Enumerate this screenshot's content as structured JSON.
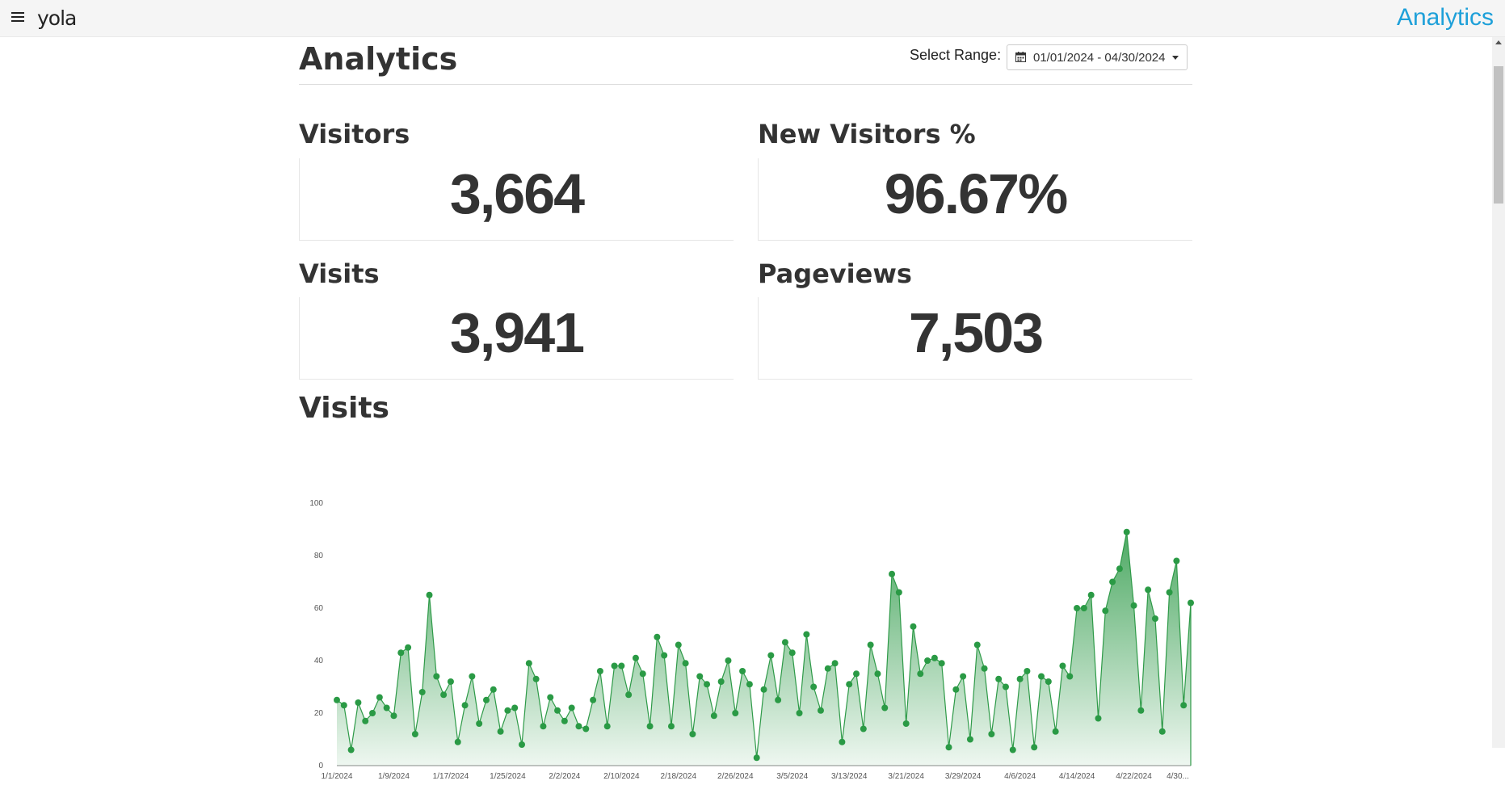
{
  "header": {
    "logo_text": "yola",
    "app_title": "Analytics"
  },
  "page": {
    "title": "Analytics",
    "range_label": "Select Range:",
    "range_value": "01/01/2024 - 04/30/2024"
  },
  "stats": [
    {
      "label": "Visitors",
      "value": "3,664"
    },
    {
      "label": "New Visitors %",
      "value": "96.67%"
    },
    {
      "label": "Visits",
      "value": "3,941"
    },
    {
      "label": "Pageviews",
      "value": "7,503"
    }
  ],
  "chart_section_title": "Visits",
  "colors": {
    "accent": "#1ea0d9",
    "series_line": "#2e9a48",
    "series_point": "#2a9a45",
    "series_fill": "#2e9a48"
  },
  "chart_data": {
    "type": "area",
    "title": "",
    "xlabel": "",
    "ylabel": "",
    "ylim": [
      0,
      100
    ],
    "yticks": [
      0,
      20,
      40,
      60,
      80,
      100
    ],
    "grid": false,
    "x_start": "1/1/2024",
    "x_tick_labels": [
      "1/1/2024",
      "1/9/2024",
      "1/17/2024",
      "1/25/2024",
      "2/2/2024",
      "2/10/2024",
      "2/18/2024",
      "2/26/2024",
      "3/5/2024",
      "3/13/2024",
      "3/21/2024",
      "3/29/2024",
      "4/6/2024",
      "4/14/2024",
      "4/22/2024",
      "4/30..."
    ],
    "series": [
      {
        "values": [
          25,
          23,
          6,
          24,
          17,
          20,
          26,
          22,
          19,
          43,
          45,
          12,
          28,
          65,
          34,
          27,
          32,
          9,
          23,
          34,
          16,
          25,
          29,
          13,
          21,
          22,
          8,
          39,
          33,
          15,
          26,
          21,
          17,
          22,
          15,
          14,
          25,
          36,
          15,
          38,
          38,
          27,
          41,
          35,
          15,
          49,
          42,
          15,
          46,
          39,
          12,
          34,
          31,
          19,
          32,
          40,
          20,
          36,
          31,
          3,
          29,
          42,
          25,
          47,
          43,
          20,
          50,
          30,
          21,
          37,
          39,
          9,
          31,
          35,
          14,
          46,
          35,
          22,
          73,
          66,
          16,
          53,
          35,
          40,
          41,
          39,
          7,
          29,
          34,
          10,
          46,
          37,
          12,
          33,
          30,
          6,
          33,
          36,
          7,
          34,
          32,
          13,
          38,
          34,
          60,
          60,
          65,
          18,
          59,
          70,
          75,
          89,
          61,
          21,
          67,
          56,
          13,
          66,
          78,
          23,
          62
        ]
      }
    ]
  }
}
